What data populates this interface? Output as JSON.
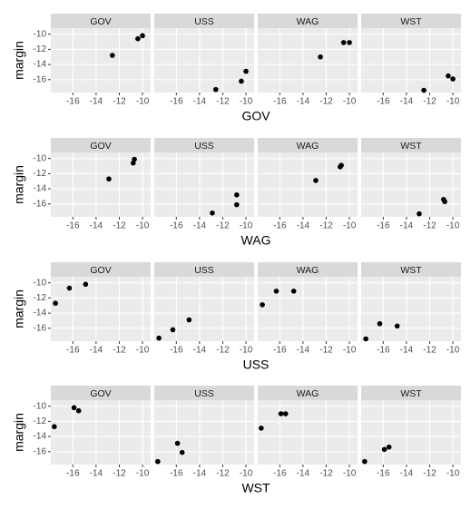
{
  "chart_data": [
    {
      "type": "scatter",
      "xlabel": "GOV",
      "ylabel": "margin",
      "color": "#000000",
      "grid": true,
      "xlim": [
        -17.9,
        -9.3
      ],
      "ylim": [
        -17.7,
        -9.2
      ],
      "xticks": [
        -16,
        -14,
        -12,
        -10
      ],
      "yticks": [
        -10,
        -12,
        -14,
        -16
      ],
      "facets": [
        {
          "name": "GOV",
          "x": [
            -12.6,
            -10.4,
            -10.0
          ],
          "y": [
            -12.8,
            -10.6,
            -10.2
          ]
        },
        {
          "name": "USS",
          "x": [
            -12.6,
            -10.4,
            -10.0
          ],
          "y": [
            -17.3,
            -16.2,
            -14.9
          ]
        },
        {
          "name": "WAG",
          "x": [
            -12.5,
            -10.5,
            -10.0
          ],
          "y": [
            -13.0,
            -11.1,
            -11.1
          ]
        },
        {
          "name": "WST",
          "x": [
            -12.5,
            -10.4,
            -10.0
          ],
          "y": [
            -17.4,
            -15.5,
            -15.9
          ]
        }
      ]
    },
    {
      "type": "scatter",
      "xlabel": "WAG",
      "ylabel": "margin",
      "color": "#000000",
      "grid": true,
      "xlim": [
        -17.9,
        -9.3
      ],
      "ylim": [
        -17.7,
        -9.2
      ],
      "xticks": [
        -16,
        -14,
        -12,
        -10
      ],
      "yticks": [
        -10,
        -12,
        -14,
        -16
      ],
      "facets": [
        {
          "name": "GOV",
          "x": [
            -12.9,
            -10.8,
            -10.7
          ],
          "y": [
            -12.7,
            -10.6,
            -10.1
          ]
        },
        {
          "name": "USS",
          "x": [
            -12.9,
            -10.8,
            -10.8
          ],
          "y": [
            -17.2,
            -14.8,
            -16.1
          ]
        },
        {
          "name": "WAG",
          "x": [
            -12.9,
            -10.8,
            -10.7
          ],
          "y": [
            -12.9,
            -11.1,
            -10.9
          ]
        },
        {
          "name": "WST",
          "x": [
            -12.9,
            -10.8,
            -10.7
          ],
          "y": [
            -17.3,
            -15.4,
            -15.7
          ]
        }
      ]
    },
    {
      "type": "scatter",
      "xlabel": "USS",
      "ylabel": "margin",
      "color": "#000000",
      "grid": true,
      "xlim": [
        -17.9,
        -9.3
      ],
      "ylim": [
        -17.7,
        -9.2
      ],
      "xticks": [
        -16,
        -14,
        -12,
        -10
      ],
      "yticks": [
        -10,
        -12,
        -14,
        -16
      ],
      "facets": [
        {
          "name": "GOV",
          "x": [
            -17.5,
            -16.3,
            -14.9
          ],
          "y": [
            -12.7,
            -10.7,
            -10.2
          ]
        },
        {
          "name": "USS",
          "x": [
            -17.5,
            -16.3,
            -14.9
          ],
          "y": [
            -17.3,
            -16.2,
            -14.9
          ]
        },
        {
          "name": "WAG",
          "x": [
            -17.5,
            -16.3,
            -14.8
          ],
          "y": [
            -12.9,
            -11.1,
            -11.1
          ]
        },
        {
          "name": "WST",
          "x": [
            -17.5,
            -16.3,
            -14.8
          ],
          "y": [
            -17.4,
            -15.4,
            -15.7
          ]
        }
      ]
    },
    {
      "type": "scatter",
      "xlabel": "WST",
      "ylabel": "margin",
      "color": "#000000",
      "grid": true,
      "xlim": [
        -17.9,
        -9.3
      ],
      "ylim": [
        -17.7,
        -9.2
      ],
      "xticks": [
        -16,
        -14,
        -12,
        -10
      ],
      "yticks": [
        -10,
        -12,
        -14,
        -16
      ],
      "facets": [
        {
          "name": "GOV",
          "x": [
            -17.6,
            -15.9,
            -15.5
          ],
          "y": [
            -12.7,
            -10.2,
            -10.6
          ]
        },
        {
          "name": "USS",
          "x": [
            -17.6,
            -15.9,
            -15.5
          ],
          "y": [
            -17.3,
            -14.9,
            -16.1
          ]
        },
        {
          "name": "WAG",
          "x": [
            -17.6,
            -15.9,
            -15.5
          ],
          "y": [
            -12.9,
            -11.0,
            -11.0
          ]
        },
        {
          "name": "WST",
          "x": [
            -17.6,
            -15.9,
            -15.5
          ],
          "y": [
            -17.3,
            -15.7,
            -15.4
          ]
        }
      ]
    }
  ]
}
